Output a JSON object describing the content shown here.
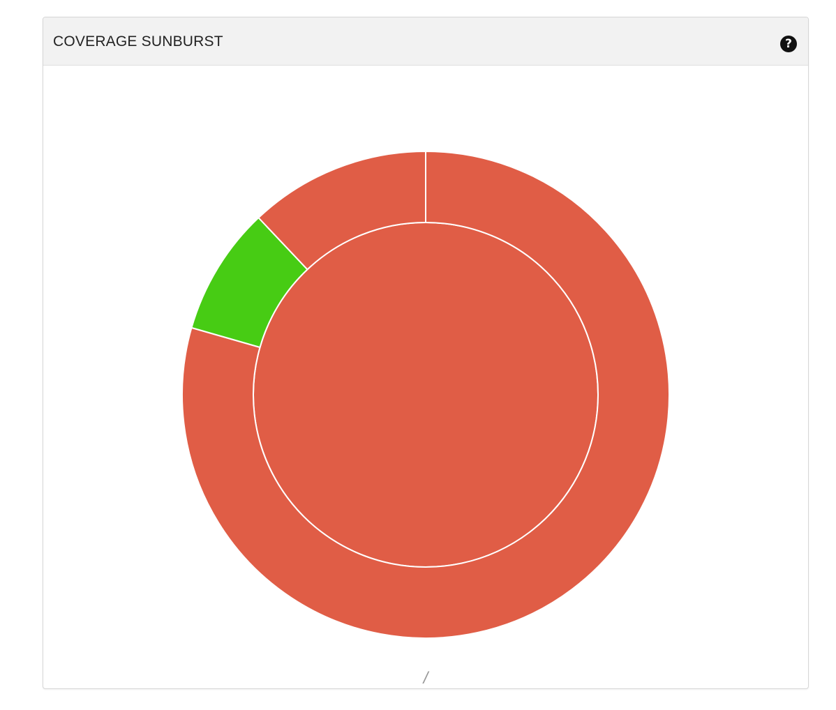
{
  "panel": {
    "title": "COVERAGE SUNBURST",
    "help_icon": "question-circle-icon",
    "current_path": "/"
  },
  "colors": {
    "uncovered": "#e05d46",
    "covered": "#47cc14",
    "separator": "#ffffff"
  },
  "chart_data": {
    "type": "sunburst",
    "title": "COVERAGE SUNBURST",
    "inner_ring": [
      {
        "value": 1.0,
        "status": "uncovered"
      }
    ],
    "outer_ring": [
      {
        "value": 0.7944,
        "status": "uncovered"
      },
      {
        "value": 0.0852,
        "status": "covered"
      },
      {
        "value": 0.1204,
        "status": "uncovered"
      }
    ]
  }
}
